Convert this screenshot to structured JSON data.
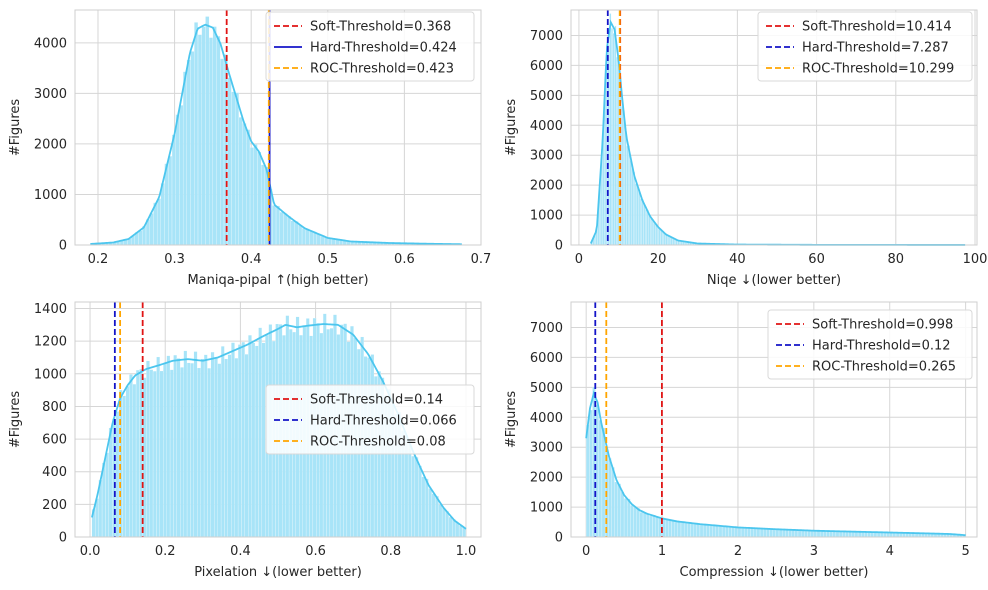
{
  "chart_data": [
    {
      "type": "histogram",
      "xlabel": "Maniqa-pipal ↑(high better)",
      "ylabel": "#Figures",
      "xlim": [
        0.17,
        0.7
      ],
      "ylim": [
        0,
        4650
      ],
      "xticks": [
        0.2,
        0.3,
        0.4,
        0.5,
        0.6,
        0.7
      ],
      "xtick_labels": [
        "0.2",
        "0.3",
        "0.4",
        "0.5",
        "0.6",
        "0.7"
      ],
      "yticks": [
        0,
        1000,
        2000,
        3000,
        4000
      ],
      "ytick_labels": [
        "0",
        "1000",
        "2000",
        "3000",
        "4000"
      ],
      "grid": true,
      "legend_position": "top-right",
      "histogram": {
        "color": "#a8e4f8",
        "kde_color": "#4cc6ee",
        "curve": [
          [
            0.19,
            20
          ],
          [
            0.22,
            50
          ],
          [
            0.24,
            120
          ],
          [
            0.26,
            350
          ],
          [
            0.28,
            950
          ],
          [
            0.3,
            2200
          ],
          [
            0.31,
            3000
          ],
          [
            0.32,
            3800
          ],
          [
            0.33,
            4280
          ],
          [
            0.34,
            4360
          ],
          [
            0.35,
            4300
          ],
          [
            0.36,
            3980
          ],
          [
            0.37,
            3450
          ],
          [
            0.38,
            2950
          ],
          [
            0.39,
            2450
          ],
          [
            0.4,
            2050
          ],
          [
            0.41,
            1850
          ],
          [
            0.42,
            1500
          ],
          [
            0.43,
            800
          ],
          [
            0.45,
            550
          ],
          [
            0.47,
            330
          ],
          [
            0.5,
            140
          ],
          [
            0.53,
            70
          ],
          [
            0.58,
            40
          ],
          [
            0.63,
            25
          ],
          [
            0.675,
            15
          ]
        ],
        "bin_range": [
          0.19,
          0.675
        ],
        "bins": 100
      },
      "vlines": [
        {
          "name": "Soft-Threshold=0.368",
          "x": 0.368,
          "color": "#e01414",
          "style": "dashed"
        },
        {
          "name": "Hard-Threshold=0.424",
          "x": 0.424,
          "color": "#1414c8",
          "style": "solid"
        },
        {
          "name": "ROC-Threshold=0.423",
          "x": 0.423,
          "color": "#ffa500",
          "style": "dashed"
        }
      ]
    },
    {
      "type": "histogram",
      "xlabel": "Niqe ↓(lower better)",
      "ylabel": "#Figures",
      "xlim": [
        -2.0,
        100.5
      ],
      "ylim": [
        0,
        7850
      ],
      "xticks": [
        0,
        20,
        40,
        60,
        80,
        100
      ],
      "xtick_labels": [
        "0",
        "20",
        "40",
        "60",
        "80",
        "100"
      ],
      "yticks": [
        0,
        1000,
        2000,
        3000,
        4000,
        5000,
        6000,
        7000
      ],
      "ytick_labels": [
        "0",
        "1000",
        "2000",
        "3000",
        "4000",
        "5000",
        "6000",
        "7000"
      ],
      "grid": true,
      "legend_position": "top-right",
      "histogram": {
        "color": "#a8e4f8",
        "kde_color": "#4cc6ee",
        "curve": [
          [
            3,
            50
          ],
          [
            4.5,
            500
          ],
          [
            6,
            3500
          ],
          [
            7,
            6500
          ],
          [
            8,
            7450
          ],
          [
            9,
            7200
          ],
          [
            10,
            6200
          ],
          [
            11,
            4800
          ],
          [
            12,
            3600
          ],
          [
            14,
            2300
          ],
          [
            16,
            1500
          ],
          [
            18,
            950
          ],
          [
            20,
            600
          ],
          [
            22,
            350
          ],
          [
            25,
            150
          ],
          [
            30,
            50
          ],
          [
            40,
            15
          ],
          [
            60,
            5
          ],
          [
            80,
            3
          ],
          [
            97.5,
            2
          ]
        ],
        "bin_range": [
          3,
          97.5
        ],
        "bins": 220
      },
      "vlines": [
        {
          "name": "Soft-Threshold=10.414",
          "x": 10.414,
          "color": "#e01414",
          "style": "dashed"
        },
        {
          "name": "Hard-Threshold=7.287",
          "x": 7.287,
          "color": "#1414c8",
          "style": "dashed"
        },
        {
          "name": "ROC-Threshold=10.299",
          "x": 10.299,
          "color": "#ffa500",
          "style": "dashed"
        }
      ]
    },
    {
      "type": "histogram",
      "xlabel": "Pixelation ↓(lower better)",
      "ylabel": "#Figures",
      "xlim": [
        -0.04,
        1.04
      ],
      "ylim": [
        0,
        1440
      ],
      "xticks": [
        0.0,
        0.2,
        0.4,
        0.6,
        0.8,
        1.0
      ],
      "xtick_labels": [
        "0.0",
        "0.2",
        "0.4",
        "0.6",
        "0.8",
        "1.0"
      ],
      "yticks": [
        0,
        200,
        400,
        600,
        800,
        1000,
        1200,
        1400
      ],
      "ytick_labels": [
        "0",
        "200",
        "400",
        "600",
        "800",
        "1000",
        "1200",
        "1400"
      ],
      "grid": true,
      "legend_position": "center-right",
      "histogram": {
        "color": "#a8e4f8",
        "kde_color": "#4cc6ee",
        "curve": [
          [
            0.005,
            120
          ],
          [
            0.02,
            260
          ],
          [
            0.04,
            480
          ],
          [
            0.06,
            700
          ],
          [
            0.08,
            850
          ],
          [
            0.1,
            930
          ],
          [
            0.12,
            990
          ],
          [
            0.15,
            1030
          ],
          [
            0.18,
            1050
          ],
          [
            0.22,
            1080
          ],
          [
            0.26,
            1090
          ],
          [
            0.3,
            1080
          ],
          [
            0.34,
            1100
          ],
          [
            0.38,
            1140
          ],
          [
            0.42,
            1180
          ],
          [
            0.46,
            1230
          ],
          [
            0.5,
            1275
          ],
          [
            0.52,
            1300
          ],
          [
            0.55,
            1285
          ],
          [
            0.58,
            1295
          ],
          [
            0.62,
            1305
          ],
          [
            0.66,
            1300
          ],
          [
            0.7,
            1240
          ],
          [
            0.74,
            1120
          ],
          [
            0.78,
            950
          ],
          [
            0.82,
            750
          ],
          [
            0.86,
            520
          ],
          [
            0.9,
            320
          ],
          [
            0.94,
            180
          ],
          [
            0.97,
            100
          ],
          [
            1.0,
            50
          ]
        ],
        "bin_range": [
          0.005,
          1.0
        ],
        "bins": 110
      },
      "vlines": [
        {
          "name": "Soft-Threshold=0.14",
          "x": 0.14,
          "color": "#e01414",
          "style": "dashed"
        },
        {
          "name": "Hard-Threshold=0.066",
          "x": 0.066,
          "color": "#1414c8",
          "style": "dashed"
        },
        {
          "name": "ROC-Threshold=0.08",
          "x": 0.08,
          "color": "#ffa500",
          "style": "dashed"
        }
      ]
    },
    {
      "type": "histogram",
      "xlabel": "Compression ↓(lower better)",
      "ylabel": "#Figures",
      "xlim": [
        -0.2,
        5.15
      ],
      "ylim": [
        0,
        7850
      ],
      "xticks": [
        0,
        1,
        2,
        3,
        4,
        5
      ],
      "xtick_labels": [
        "0",
        "1",
        "2",
        "3",
        "4",
        "5"
      ],
      "yticks": [
        0,
        1000,
        2000,
        3000,
        4000,
        5000,
        6000,
        7000
      ],
      "ytick_labels": [
        "0",
        "1000",
        "2000",
        "3000",
        "4000",
        "5000",
        "6000",
        "7000"
      ],
      "grid": true,
      "legend_position": "top-right",
      "histogram": {
        "color": "#a8e4f8",
        "kde_color": "#4cc6ee",
        "curve": [
          [
            0.0,
            3300
          ],
          [
            0.05,
            4300
          ],
          [
            0.1,
            4800
          ],
          [
            0.15,
            4500
          ],
          [
            0.2,
            3800
          ],
          [
            0.3,
            2700
          ],
          [
            0.4,
            1900
          ],
          [
            0.5,
            1400
          ],
          [
            0.6,
            1100
          ],
          [
            0.7,
            900
          ],
          [
            0.8,
            780
          ],
          [
            1.0,
            620
          ],
          [
            1.2,
            520
          ],
          [
            1.5,
            430
          ],
          [
            2.0,
            320
          ],
          [
            2.5,
            260
          ],
          [
            3.0,
            210
          ],
          [
            3.5,
            180
          ],
          [
            4.0,
            150
          ],
          [
            4.5,
            120
          ],
          [
            4.8,
            100
          ],
          [
            5.0,
            60
          ]
        ],
        "bin_range": [
          0.0,
          5.0
        ],
        "bins": 120
      },
      "vlines": [
        {
          "name": "Soft-Threshold=0.998",
          "x": 0.998,
          "color": "#e01414",
          "style": "dashed"
        },
        {
          "name": "Hard-Threshold=0.12",
          "x": 0.12,
          "color": "#1414c8",
          "style": "dashed"
        },
        {
          "name": "ROC-Threshold=0.265",
          "x": 0.265,
          "color": "#ffa500",
          "style": "dashed"
        }
      ]
    }
  ]
}
